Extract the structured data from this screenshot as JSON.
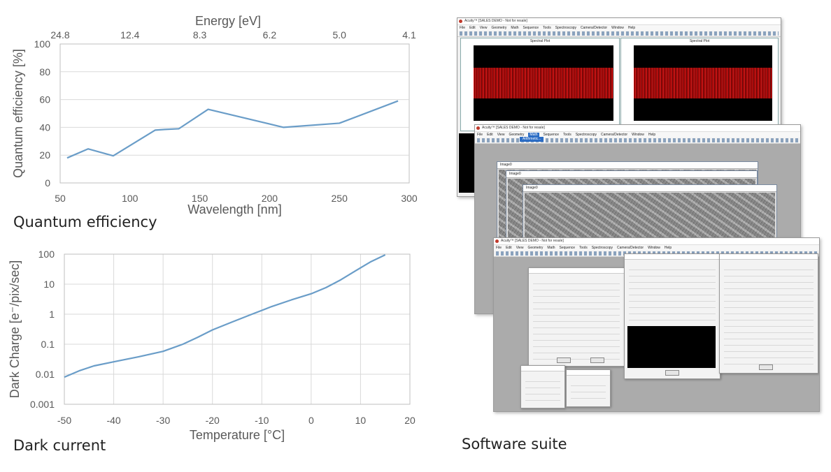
{
  "captions": {
    "quantum_efficiency": "Quantum efficiency",
    "dark_current": "Dark current",
    "software_suite": "Software suite"
  },
  "colors": {
    "line": "#6a9dc8",
    "grid": "#d9d9d9",
    "axis": "#bfbfbf",
    "text": "#595959"
  },
  "chart_data": [
    {
      "type": "line",
      "title": "",
      "xlabel": "Wavelength [nm]",
      "ylabel": "Quantum efficiency [%]",
      "secondary_xlabel": "Energy [eV]",
      "secondary_xticks": [
        {
          "label": "24.8",
          "wavelength": 50
        },
        {
          "label": "12.4",
          "wavelength": 100
        },
        {
          "label": "8.3",
          "wavelength": 150
        },
        {
          "label": "6.2",
          "wavelength": 200
        },
        {
          "label": "5.0",
          "wavelength": 250
        },
        {
          "label": "4.1",
          "wavelength": 300
        }
      ],
      "xlim": [
        50,
        300
      ],
      "ylim": [
        0,
        100
      ],
      "xticks": [
        50,
        100,
        150,
        200,
        250,
        300
      ],
      "yticks": [
        0,
        20,
        40,
        60,
        80,
        100
      ],
      "grid": "horizontal",
      "x": [
        55,
        70,
        88,
        118,
        125,
        135,
        156,
        210,
        250,
        292
      ],
      "y": [
        18,
        24.5,
        19.5,
        38,
        38.5,
        39,
        53,
        40,
        43,
        59
      ]
    },
    {
      "type": "line",
      "title": "",
      "xlabel": "Temperature [°C]",
      "ylabel": "Dark Charge [e⁻/pix/sec]",
      "yscale": "log",
      "xlim": [
        -50,
        20
      ],
      "ylim": [
        0.001,
        100
      ],
      "xticks": [
        -50,
        -40,
        -30,
        -20,
        -10,
        0,
        10,
        20
      ],
      "yticks": [
        0.001,
        0.01,
        0.1,
        1,
        10,
        100
      ],
      "yticklabels": [
        "0.001",
        "0.01",
        "0.1",
        "1",
        "10",
        "100"
      ],
      "grid": "both",
      "x": [
        -50,
        -47,
        -44,
        -40,
        -35,
        -30,
        -26,
        -23,
        -20,
        -16,
        -12,
        -8,
        -4,
        0,
        3,
        6,
        9,
        12,
        15
      ],
      "y": [
        0.008,
        0.013,
        0.019,
        0.026,
        0.038,
        0.058,
        0.1,
        0.17,
        0.3,
        0.55,
        1.0,
        1.8,
        3.0,
        4.8,
        7.7,
        14,
        28,
        55,
        95
      ]
    }
  ],
  "software": {
    "app_title": "Acuity™ [SALES DEMO - Not for resale]",
    "menu": [
      "File",
      "Edit",
      "View",
      "Geometry",
      "Math",
      "Sequence",
      "Tools",
      "Spectroscopy",
      "Camera/Detector",
      "Window",
      "Help"
    ],
    "menu_highlight": "Math",
    "menu_dropdown": "Arithmetic...",
    "plot_title": "Spectral Plot",
    "image_window": "Image0"
  }
}
